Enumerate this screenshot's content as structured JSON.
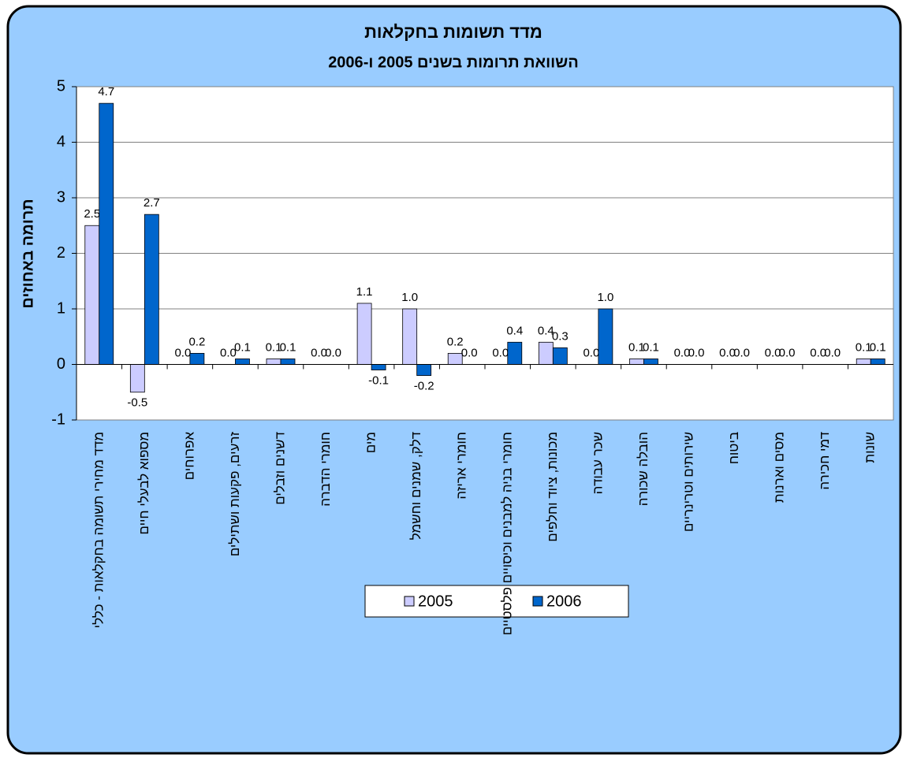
{
  "chart_data": {
    "type": "bar",
    "title": "מדד תשומות בחקלאות",
    "subtitle": "השוואת תרומות בשנים 2005 ו-2006",
    "y_label": "תרומה באחוזים",
    "categories": [
      "מדד מחירי תשומה בחקלאות - כללי",
      "מספוא לבעלי חיים",
      "אפרוחים",
      "זרעים, פקעות ושתילים",
      "דשנים וזבלים",
      "חומרי הדברה",
      "מים",
      "דלק, שמנים וחשמל",
      "חומרי אריזה",
      "חומרי בניה למבנים וכיסויים פלסטיים",
      "מכונות, ציוד וחלפים",
      "שכר עבודה",
      "הובלה שכורה",
      "שירותים וטרינריים",
      "ביטוח",
      "מסים וארנות",
      "דמי חכירה",
      "שונות"
    ],
    "series": [
      {
        "name": "2005",
        "color": "#ccccff",
        "values": [
          2.5,
          -0.5,
          0,
          0,
          0.1,
          0,
          1.1,
          1.0,
          0.2,
          0,
          0.4,
          0,
          0.1,
          0,
          0,
          0,
          0,
          0.1
        ],
        "value_labels": [
          "2.5",
          "-0.5",
          "0.0",
          "0.0",
          "0.1",
          "0.0",
          "1.1",
          "1.0",
          "0.2",
          "0.0",
          "0.4",
          "0.0",
          "0.1",
          "0.0",
          "0.0",
          "0.0",
          "0.0",
          "0.1"
        ]
      },
      {
        "name": "2006",
        "color": "#0066cc",
        "values": [
          4.7,
          2.7,
          0.2,
          0.1,
          0.1,
          0,
          -0.1,
          -0.2,
          0,
          0.4,
          0.3,
          1.0,
          0.1,
          0,
          0,
          0,
          0,
          0.1
        ],
        "value_labels": [
          "4.7",
          "2.7",
          "0.2",
          "0.1",
          "0.1",
          "0.0",
          "-0.1",
          "-0.2",
          "0.0",
          "0.4",
          "0.3",
          "1.0",
          "0.1",
          "0.0",
          "0.0",
          "0.0",
          "0.0",
          "0.1"
        ]
      }
    ],
    "ylim": [
      -1,
      5
    ],
    "yticks": [
      -1,
      0,
      1,
      2,
      3,
      4,
      5
    ],
    "grid": true,
    "legend": "bottom"
  }
}
